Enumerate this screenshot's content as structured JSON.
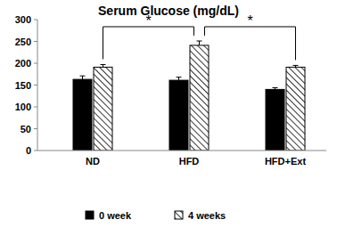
{
  "chart_data": {
    "type": "bar",
    "title": "Serum Glucose (mg/dL)",
    "categories": [
      "ND",
      "HFD",
      "HFD+Ext"
    ],
    "series": [
      {
        "name": "0 week",
        "color": "#000000",
        "values": [
          163,
          161,
          140
        ],
        "errors": [
          8,
          7,
          4
        ]
      },
      {
        "name": "4 weeks",
        "color": "#000000",
        "marker": "hatched",
        "values": [
          191,
          241,
          191
        ],
        "errors": [
          6,
          10,
          4
        ]
      }
    ],
    "ylim": [
      0,
      300
    ],
    "yticks": [
      0,
      50,
      100,
      150,
      200,
      250,
      300
    ],
    "grid": false,
    "legend": "bottom",
    "annotations": [
      {
        "text": "*",
        "between": [
          "ND",
          "HFD"
        ]
      },
      {
        "text": "*",
        "between": [
          "HFD",
          "HFD+Ext"
        ]
      }
    ]
  }
}
